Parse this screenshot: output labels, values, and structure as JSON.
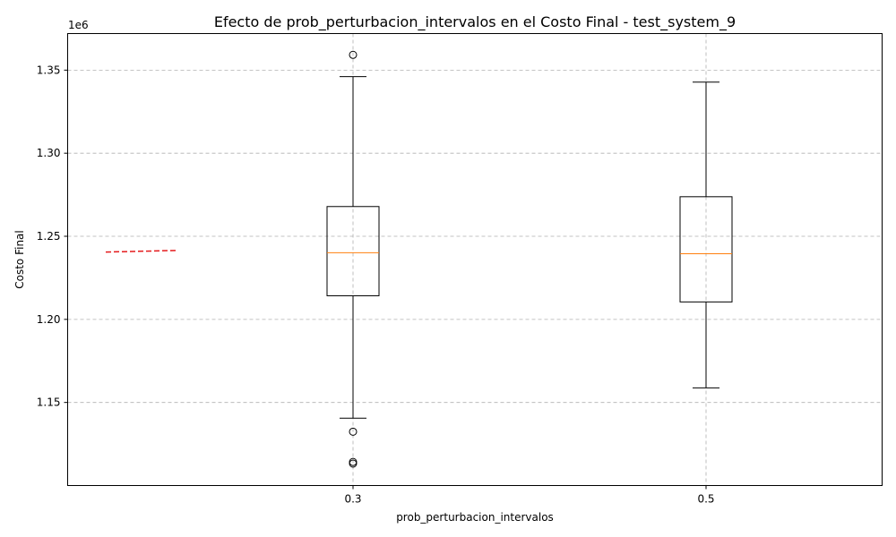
{
  "chart_data": {
    "type": "box",
    "title": "Efecto de prob_perturbacion_intervalos en el Costo Final - test_system_9",
    "xlabel": "prob_perturbacion_intervalos",
    "ylabel": "Costo Final",
    "y_offset_label": "1e6",
    "ylim": [
      1.1,
      1.372
    ],
    "y_ticks": [
      1.15,
      1.2,
      1.25,
      1.3,
      1.35
    ],
    "y_tick_labels": [
      "1.15",
      "1.20",
      "1.25",
      "1.30",
      "1.35"
    ],
    "grid": true,
    "categories": [
      "0.3",
      "0.5"
    ],
    "boxes": [
      {
        "category": "0.3",
        "whisker_low": 1.1405,
        "q1": 1.2142,
        "median": 1.2401,
        "q3": 1.2679,
        "whisker_high": 1.3461,
        "outliers": [
          1.3592,
          1.1324,
          1.1142,
          1.1132
        ]
      },
      {
        "category": "0.5",
        "whisker_low": 1.1588,
        "q1": 1.2105,
        "median": 1.2395,
        "q3": 1.2738,
        "whisker_high": 1.3428,
        "outliers": []
      }
    ],
    "trend_line": {
      "x": [
        "",
        ""
      ],
      "y": [
        1.2405,
        1.2415
      ],
      "style": "dashed",
      "color": "#e41a1c"
    },
    "colors": {
      "box": "#000000",
      "median": "#ff7f0e",
      "grid": "#b0b0b0",
      "trend": "#e41a1c"
    }
  }
}
